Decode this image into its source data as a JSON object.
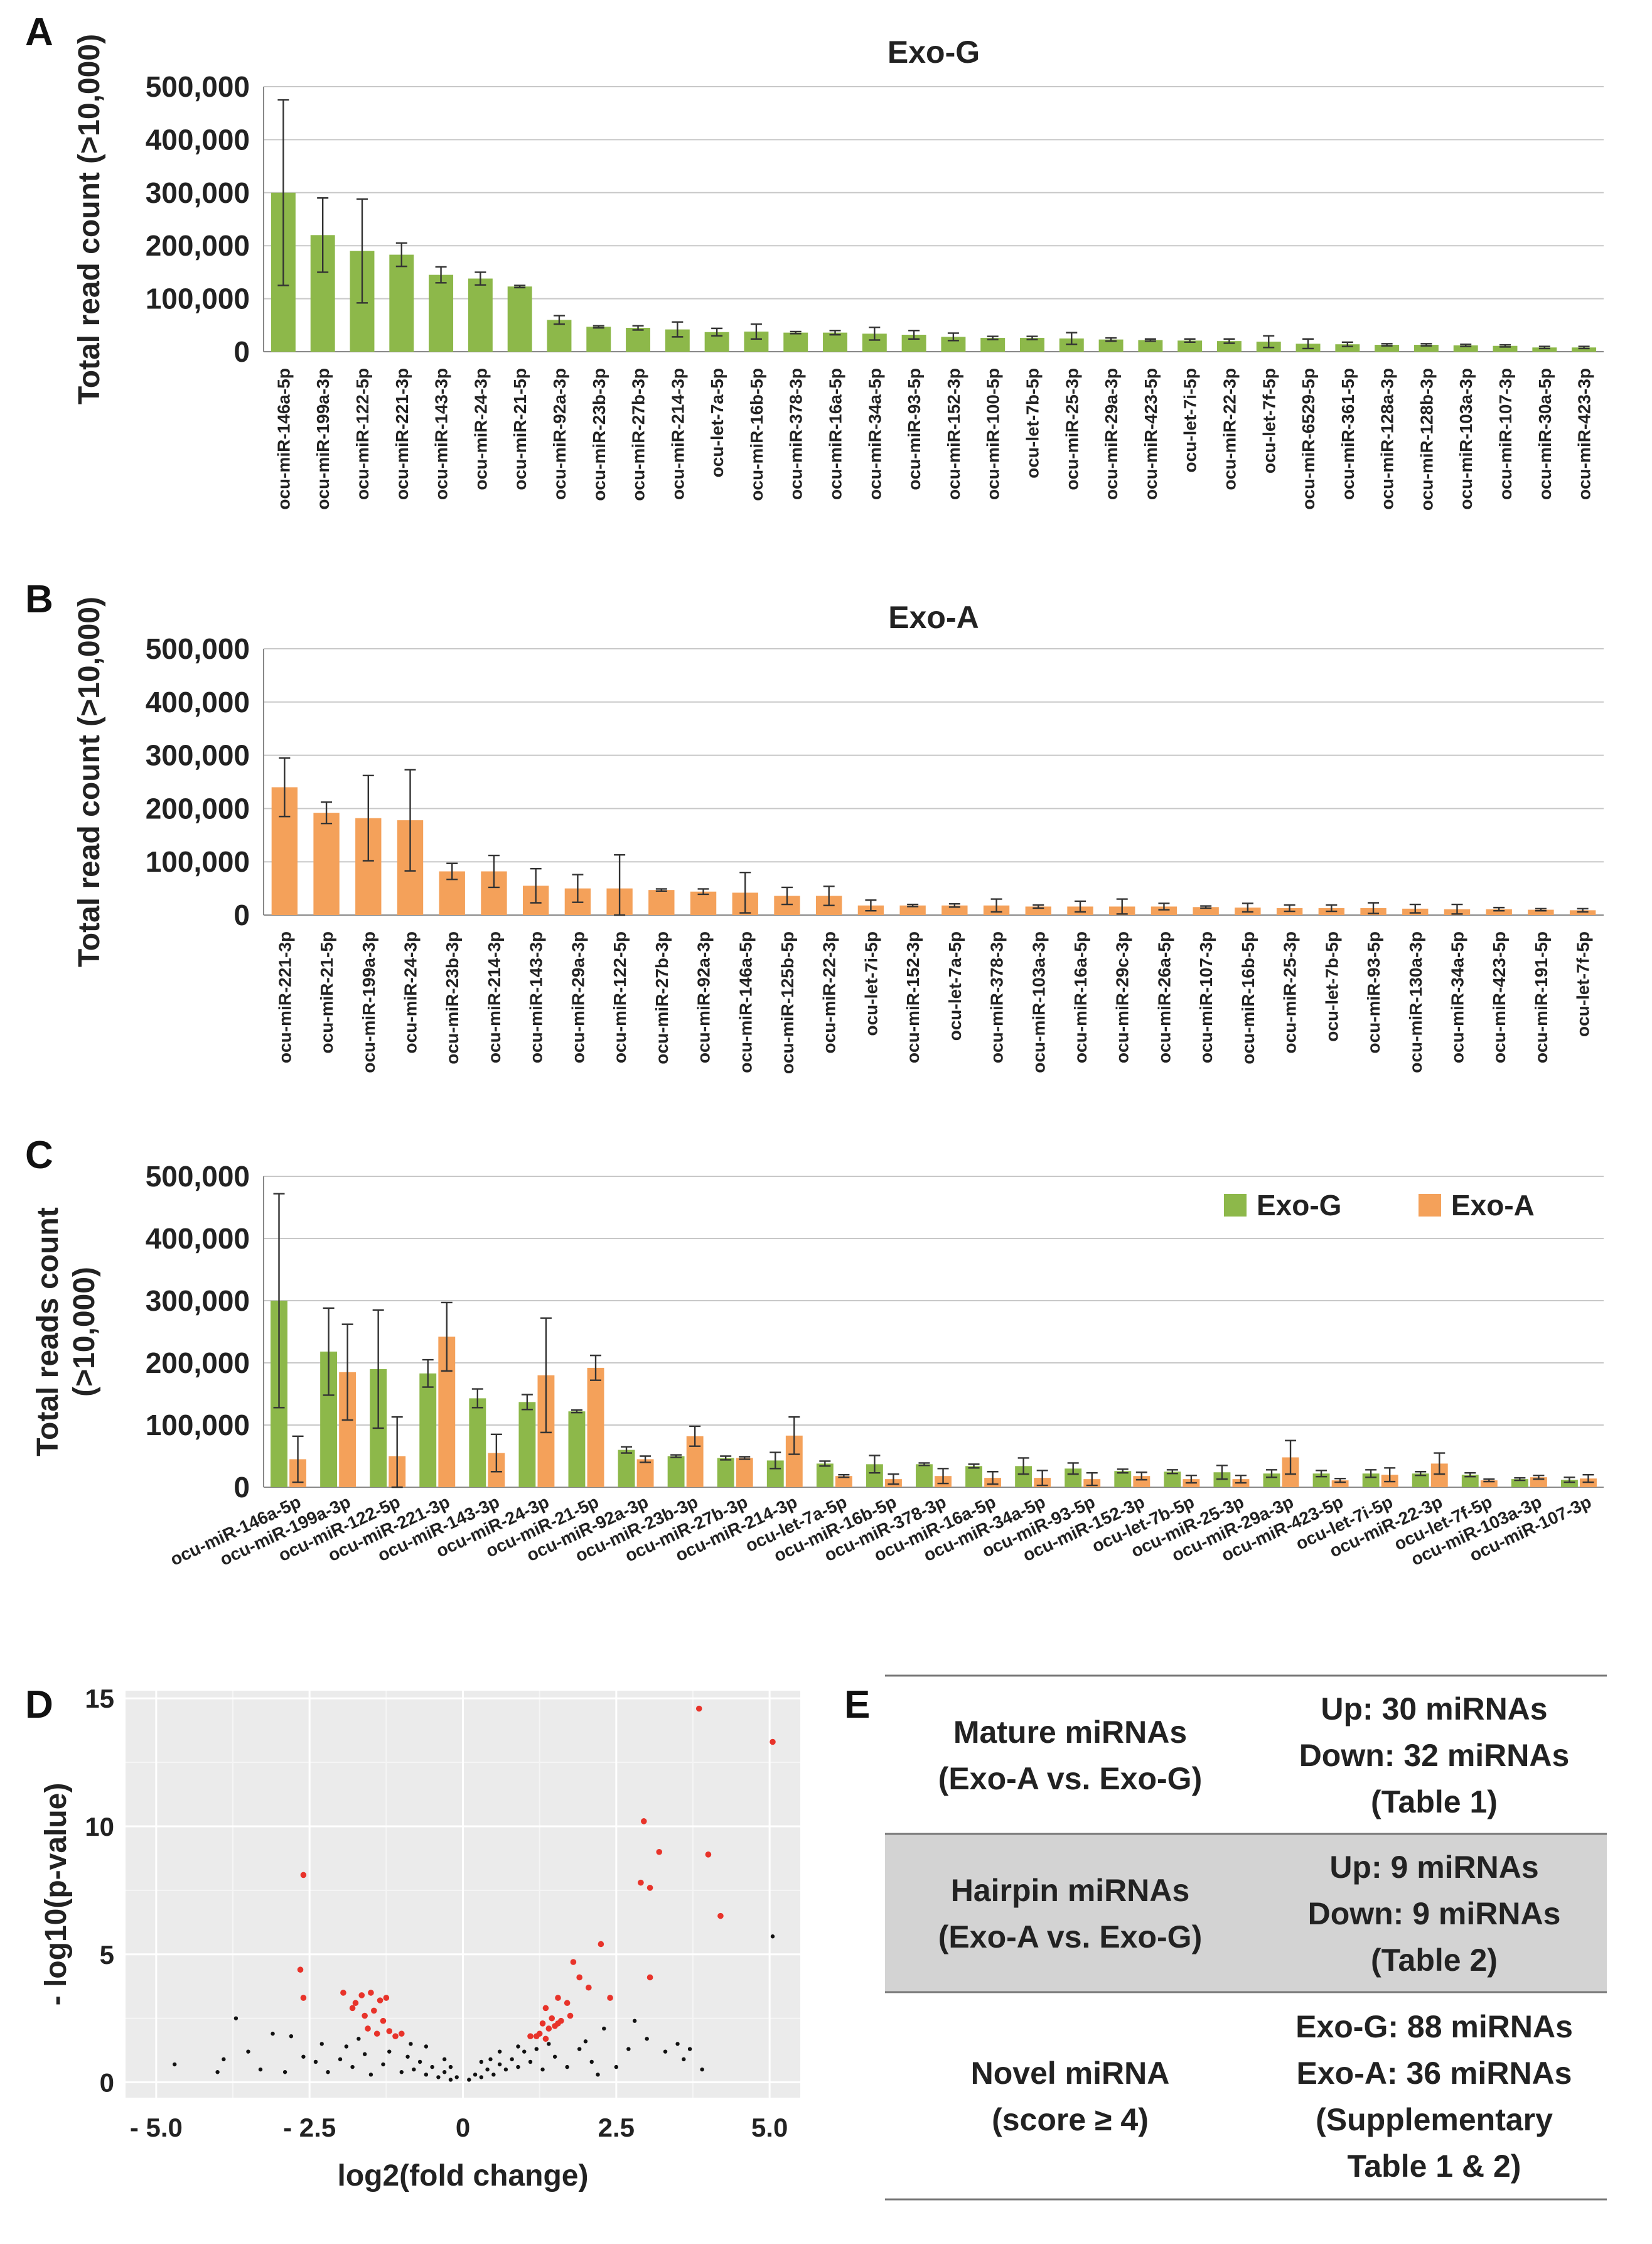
{
  "panel_labels": {
    "a": "A",
    "b": "B",
    "c": "C",
    "d": "D",
    "e": "E"
  },
  "colors": {
    "exo_g": "#8DB84A",
    "exo_a": "#F4A15A",
    "grid": "#C8C8C8",
    "volcano_bg": "#EBEBEB",
    "sig": "#E8332A",
    "nonsig": "#111111",
    "shade": "#D3D3D3"
  },
  "chart_data": [
    {
      "type": "bar",
      "title": "Exo-G",
      "ylabel": "Total read count (>10,000)",
      "ylim": [
        0,
        500000
      ],
      "yticks": [
        0,
        100000,
        200000,
        300000,
        400000,
        500000
      ],
      "ytick_labels": [
        "0",
        "100,000",
        "200,000",
        "300,000",
        "400,000",
        "500,000"
      ],
      "categories": [
        "ocu-miR-146a-5p",
        "ocu-miR-199a-3p",
        "ocu-miR-122-5p",
        "ocu-miR-221-3p",
        "ocu-miR-143-3p",
        "ocu-miR-24-3p",
        "ocu-miR-21-5p",
        "ocu-miR-92a-3p",
        "ocu-miR-23b-3p",
        "ocu-miR-27b-3p",
        "ocu-miR-214-3p",
        "ocu-let-7a-5p",
        "ocu-miR-16b-5p",
        "ocu-miR-378-3p",
        "ocu-miR-16a-5p",
        "ocu-miR-34a-5p",
        "ocu-miR-93-5p",
        "ocu-miR-152-3p",
        "ocu-miR-100-5p",
        "ocu-let-7b-5p",
        "ocu-miR-25-3p",
        "ocu-miR-29a-3p",
        "ocu-miR-423-5p",
        "ocu-let-7i-5p",
        "ocu-miR-22-3p",
        "ocu-let-7f-5p",
        "ocu-miR-6529-5p",
        "ocu-miR-361-5p",
        "ocu-miR-128a-3p",
        "ocu-miR-128b-3p",
        "ocu-miR-103a-3p",
        "ocu-miR-107-3p",
        "ocu-miR-30a-5p",
        "ocu-miR-423-3p"
      ],
      "series": [
        {
          "name": "Exo-G",
          "color": "#8DB84A",
          "values": [
            300000,
            220000,
            190000,
            183000,
            145000,
            138000,
            123000,
            60000,
            47000,
            45000,
            42000,
            37000,
            38000,
            36000,
            36000,
            34000,
            32000,
            28000,
            26000,
            26000,
            25000,
            23000,
            22000,
            21000,
            20000,
            19000,
            15000,
            14000,
            13000,
            13000,
            12000,
            11000,
            8000,
            8000
          ],
          "errors": [
            175000,
            70000,
            98000,
            22000,
            15000,
            12000,
            2000,
            8000,
            2000,
            4000,
            14000,
            7000,
            14000,
            2000,
            4000,
            12000,
            8000,
            7000,
            3000,
            3000,
            11000,
            3000,
            2000,
            3000,
            4000,
            11000,
            9000,
            4000,
            2000,
            2000,
            2000,
            2000,
            2000,
            2000
          ]
        }
      ]
    },
    {
      "type": "bar",
      "title": "Exo-A",
      "ylabel": "Total read count (>10,000)",
      "ylim": [
        0,
        500000
      ],
      "yticks": [
        0,
        100000,
        200000,
        300000,
        400000,
        500000
      ],
      "ytick_labels": [
        "0",
        "100,000",
        "200,000",
        "300,000",
        "400,000",
        "500,000"
      ],
      "categories": [
        "ocu-miR-221-3p",
        "ocu-miR-21-5p",
        "ocu-miR-199a-3p",
        "ocu-miR-24-3p",
        "ocu-miR-23b-3p",
        "ocu-miR-214-3p",
        "ocu-miR-143-3p",
        "ocu-miR-29a-3p",
        "ocu-miR-122-5p",
        "ocu-miR-27b-3p",
        "ocu-miR-92a-3p",
        "ocu-miR-146a-5p",
        "ocu-miR-125b-5p",
        "ocu-miR-22-3p",
        "ocu-let-7i-5p",
        "ocu-miR-152-3p",
        "ocu-let-7a-5p",
        "ocu-miR-378-3p",
        "ocu-miR-103a-3p",
        "ocu-miR-16a-5p",
        "ocu-miR-29c-3p",
        "ocu-miR-26a-5p",
        "ocu-miR-107-3p",
        "ocu-miR-16b-5p",
        "ocu-miR-25-3p",
        "ocu-let-7b-5p",
        "ocu-miR-93-5p",
        "ocu-miR-130a-3p",
        "ocu-miR-34a-5p",
        "ocu-miR-423-5p",
        "ocu-miR-191-5p",
        "ocu-let-7f-5p"
      ],
      "series": [
        {
          "name": "Exo-A",
          "color": "#F4A15A",
          "values": [
            240000,
            192000,
            182000,
            178000,
            82000,
            82000,
            55000,
            50000,
            50000,
            47000,
            44000,
            42000,
            36000,
            36000,
            18000,
            18000,
            18000,
            18000,
            16000,
            16000,
            16000,
            16000,
            15000,
            14000,
            13000,
            13000,
            13000,
            12000,
            11000,
            11000,
            10000,
            9000
          ],
          "errors": [
            55000,
            20000,
            80000,
            95000,
            15000,
            30000,
            32000,
            26000,
            63000,
            2000,
            5000,
            38000,
            16000,
            18000,
            10000,
            2000,
            3000,
            12000,
            3000,
            10000,
            14000,
            6000,
            2000,
            8000,
            6000,
            6000,
            10000,
            8000,
            9000,
            3000,
            2000,
            3000
          ]
        }
      ]
    },
    {
      "type": "bar",
      "ylabel": "Total reads count (>10,000)",
      "ylim": [
        0,
        500000
      ],
      "yticks": [
        0,
        100000,
        200000,
        300000,
        400000,
        500000
      ],
      "ytick_labels": [
        "0",
        "100,000",
        "200,000",
        "300,000",
        "400,000",
        "500,000"
      ],
      "legend": "top-right",
      "categories": [
        "ocu-miR-146a-5p",
        "ocu-miR-199a-3p",
        "ocu-miR-122-5p",
        "ocu-miR-221-3p",
        "ocu-miR-143-3p",
        "ocu-miR-24-3p",
        "ocu-miR-21-5p",
        "ocu-miR-92a-3p",
        "ocu-miR-23b-3p",
        "ocu-miR-27b-3p",
        "ocu-miR-214-3p",
        "ocu-let-7a-5p",
        "ocu-miR-16b-5p",
        "ocu-miR-378-3p",
        "ocu-miR-16a-5p",
        "ocu-miR-34a-5p",
        "ocu-miR-93-5p",
        "ocu-miR-152-3p",
        "ocu-let-7b-5p",
        "ocu-miR-25-3p",
        "ocu-miR-29a-3p",
        "ocu-miR-423-5p",
        "ocu-let-7i-5p",
        "ocu-miR-22-3p",
        "ocu-let-7f-5p",
        "ocu-miR-103a-3p",
        "ocu-miR-107-3p"
      ],
      "series": [
        {
          "name": "Exo-G",
          "color": "#8DB84A",
          "values": [
            300000,
            218000,
            190000,
            183000,
            143000,
            137000,
            122000,
            60000,
            50000,
            47000,
            43000,
            38000,
            37000,
            37000,
            34000,
            34000,
            30000,
            26000,
            25000,
            24000,
            22000,
            22000,
            22000,
            22000,
            20000,
            13000,
            12000
          ],
          "errors": [
            172000,
            70000,
            95000,
            22000,
            15000,
            12000,
            2000,
            5000,
            2000,
            3000,
            13000,
            4000,
            14000,
            2000,
            3000,
            13000,
            9000,
            3000,
            3000,
            11000,
            6000,
            5000,
            6000,
            3000,
            3000,
            2000,
            4000
          ]
        },
        {
          "name": "Exo-A",
          "color": "#F4A15A",
          "values": [
            45000,
            185000,
            50000,
            242000,
            55000,
            180000,
            192000,
            45000,
            82000,
            47000,
            83000,
            18000,
            13000,
            18000,
            15000,
            15000,
            13000,
            18000,
            13000,
            13000,
            48000,
            11000,
            20000,
            38000,
            11000,
            16000,
            14000
          ],
          "errors": [
            37000,
            77000,
            63000,
            55000,
            30000,
            92000,
            20000,
            5000,
            16000,
            2000,
            30000,
            2000,
            8000,
            12000,
            10000,
            12000,
            10000,
            6000,
            6000,
            6000,
            27000,
            3000,
            11000,
            17000,
            2000,
            3000,
            6000
          ]
        }
      ]
    },
    {
      "type": "scatter",
      "xlabel": "log2(fold change)",
      "ylabel": "- log10(p-value)",
      "xlim": [
        -5.5,
        5.5
      ],
      "ylim": [
        -0.6,
        15.3
      ],
      "xticks": [
        -5.0,
        -2.5,
        0,
        2.5,
        5.0
      ],
      "xtick_labels": [
        "- 5.0",
        "- 2.5",
        "0",
        "2.5",
        "5.0"
      ],
      "yticks": [
        0,
        5,
        10,
        15
      ],
      "ytick_labels": [
        "0",
        "5",
        "10",
        "15"
      ],
      "significant_points": [
        [
          3.85,
          14.6
        ],
        [
          5.05,
          13.3
        ],
        [
          2.95,
          10.2
        ],
        [
          4.0,
          8.9
        ],
        [
          3.2,
          9.0
        ],
        [
          2.9,
          7.8
        ],
        [
          3.05,
          7.6
        ],
        [
          4.2,
          6.5
        ],
        [
          3.05,
          4.1
        ],
        [
          2.25,
          5.4
        ],
        [
          1.8,
          4.7
        ],
        [
          1.9,
          4.1
        ],
        [
          2.05,
          3.7
        ],
        [
          2.4,
          3.3
        ],
        [
          1.55,
          3.3
        ],
        [
          1.7,
          3.1
        ],
        [
          1.35,
          2.9
        ],
        [
          1.45,
          2.5
        ],
        [
          1.3,
          2.3
        ],
        [
          1.4,
          2.1
        ],
        [
          1.5,
          2.2
        ],
        [
          1.25,
          1.9
        ],
        [
          1.55,
          2.3
        ],
        [
          1.2,
          1.8
        ],
        [
          1.35,
          1.7
        ],
        [
          1.6,
          2.4
        ],
        [
          1.1,
          1.8
        ],
        [
          1.75,
          2.6
        ],
        [
          -2.6,
          8.1
        ],
        [
          -2.65,
          4.4
        ],
        [
          -2.6,
          3.3
        ],
        [
          -1.95,
          3.5
        ],
        [
          -1.75,
          3.1
        ],
        [
          -1.5,
          3.5
        ],
        [
          -1.35,
          3.2
        ],
        [
          -1.45,
          2.8
        ],
        [
          -1.6,
          2.6
        ],
        [
          -1.3,
          2.4
        ],
        [
          -1.2,
          2.0
        ],
        [
          -1.1,
          1.8
        ],
        [
          -1.4,
          1.9
        ],
        [
          -1.55,
          2.1
        ],
        [
          -1.8,
          2.9
        ],
        [
          -1.25,
          3.3
        ],
        [
          -1.0,
          1.9
        ],
        [
          -1.65,
          3.4
        ]
      ],
      "other_points": [
        [
          5.05,
          5.7
        ],
        [
          -3.7,
          2.5
        ],
        [
          -4.7,
          0.7
        ],
        [
          -3.9,
          0.9
        ],
        [
          -2.8,
          1.8
        ],
        [
          -3.1,
          1.9
        ],
        [
          -3.3,
          0.5
        ],
        [
          -3.5,
          1.2
        ],
        [
          -2.4,
          0.8
        ],
        [
          -2.2,
          0.4
        ],
        [
          -2.0,
          0.9
        ],
        [
          -1.8,
          0.6
        ],
        [
          -1.6,
          1.1
        ],
        [
          -1.5,
          0.3
        ],
        [
          -1.3,
          0.7
        ],
        [
          -1.2,
          1.2
        ],
        [
          -1.0,
          0.4
        ],
        [
          -0.9,
          1.0
        ],
        [
          -0.8,
          0.5
        ],
        [
          -0.7,
          0.8
        ],
        [
          -0.6,
          0.3
        ],
        [
          -0.5,
          0.6
        ],
        [
          -0.4,
          0.2
        ],
        [
          -0.3,
          0.4
        ],
        [
          -0.2,
          0.1
        ],
        [
          -0.1,
          0.2
        ],
        [
          0.1,
          0.1
        ],
        [
          0.2,
          0.3
        ],
        [
          0.3,
          0.2
        ],
        [
          0.4,
          0.5
        ],
        [
          0.5,
          0.3
        ],
        [
          0.6,
          0.7
        ],
        [
          0.7,
          0.5
        ],
        [
          0.8,
          0.9
        ],
        [
          0.9,
          0.6
        ],
        [
          1.0,
          1.2
        ],
        [
          1.1,
          0.8
        ],
        [
          1.2,
          1.3
        ],
        [
          1.3,
          0.5
        ],
        [
          1.5,
          1.0
        ],
        [
          1.7,
          0.6
        ],
        [
          1.9,
          1.3
        ],
        [
          2.1,
          0.8
        ],
        [
          2.3,
          2.1
        ],
        [
          2.5,
          0.6
        ],
        [
          2.7,
          1.3
        ],
        [
          3.0,
          1.7
        ],
        [
          3.3,
          1.2
        ],
        [
          3.5,
          1.5
        ],
        [
          3.7,
          1.3
        ],
        [
          3.9,
          0.5
        ],
        [
          2.8,
          2.4
        ],
        [
          -2.6,
          1.0
        ],
        [
          -2.3,
          1.5
        ],
        [
          -1.9,
          1.4
        ],
        [
          -0.6,
          1.4
        ],
        [
          0.3,
          0.8
        ],
        [
          0.6,
          1.2
        ],
        [
          -0.3,
          0.9
        ],
        [
          1.4,
          1.5
        ],
        [
          -1.7,
          1.7
        ],
        [
          2.0,
          1.6
        ],
        [
          -0.85,
          1.5
        ],
        [
          0.9,
          1.4
        ],
        [
          -0.2,
          0.6
        ],
        [
          0.45,
          0.9
        ],
        [
          2.2,
          0.3
        ],
        [
          -2.9,
          0.4
        ],
        [
          3.6,
          0.9
        ],
        [
          -4.0,
          0.4
        ]
      ]
    }
  ],
  "table_e": {
    "rows": [
      {
        "label": [
          "Mature miRNAs",
          "(Exo-A vs. Exo-G)"
        ],
        "value": [
          "Up: 30 miRNAs",
          "Down: 32 miRNAs",
          "(Table 1)"
        ]
      },
      {
        "label": [
          "Hairpin miRNAs",
          "(Exo-A vs. Exo-G)"
        ],
        "value": [
          "Up: 9 miRNAs",
          "Down: 9 miRNAs",
          "(Table 2)"
        ]
      },
      {
        "label": [
          "Novel miRNA",
          "(score ≥ 4)"
        ],
        "value": [
          "Exo-G: 88 miRNAs",
          "Exo-A: 36 miRNAs",
          "(Supplementary",
          "Table 1 & 2)"
        ]
      }
    ]
  }
}
